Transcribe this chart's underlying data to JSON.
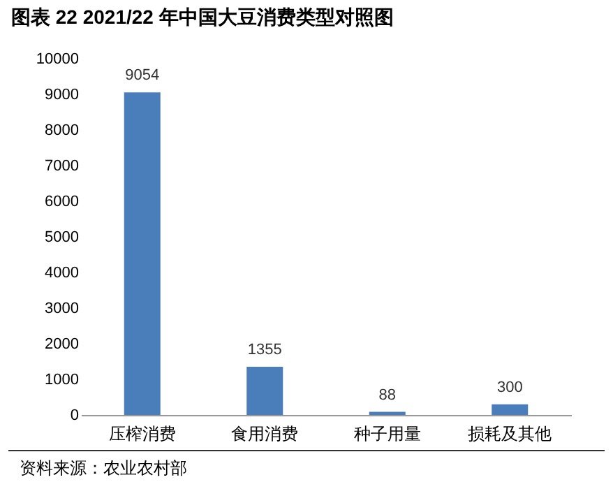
{
  "chart_data": {
    "type": "bar",
    "title": "图表 22 2021/22 年中国大豆消费类型对照图",
    "categories": [
      "压榨消费",
      "食用消费",
      "种子用量",
      "损耗及其他"
    ],
    "values": [
      9054,
      1355,
      88,
      300
    ],
    "color": "#4a7ebb",
    "ylim": [
      0,
      10000
    ],
    "yticks": [
      0,
      1000,
      2000,
      3000,
      4000,
      5000,
      6000,
      7000,
      8000,
      9000,
      10000
    ],
    "data_labels": true,
    "annotations": [
      "资料来源：农业农村部"
    ]
  }
}
